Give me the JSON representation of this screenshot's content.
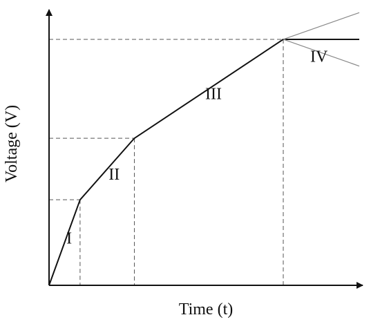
{
  "chart_data": {
    "type": "line",
    "xlabel": "Time (t)",
    "ylabel": "Voltage (V)",
    "xlim": [
      0,
      100
    ],
    "ylim": [
      0,
      100
    ],
    "series": [
      {
        "x": [
          0,
          10,
          27.5,
          75.5,
          100
        ],
        "y": [
          0,
          32,
          55,
          92,
          92
        ]
      },
      {
        "x": [
          75.5,
          100
        ],
        "y": [
          92,
          102
        ]
      },
      {
        "x": [
          75.5,
          100
        ],
        "y": [
          92,
          82
        ]
      }
    ],
    "reference_points": [
      {
        "x": 10,
        "y": 32
      },
      {
        "x": 27.5,
        "y": 55
      },
      {
        "x": 75.5,
        "y": 92
      }
    ],
    "regions": [
      {
        "label": "I",
        "x": 6.5,
        "y": 17
      },
      {
        "label": "II",
        "x": 21,
        "y": 41
      },
      {
        "label": "III",
        "x": 53,
        "y": 71
      },
      {
        "label": "IV",
        "x": 87,
        "y": 85
      }
    ]
  }
}
